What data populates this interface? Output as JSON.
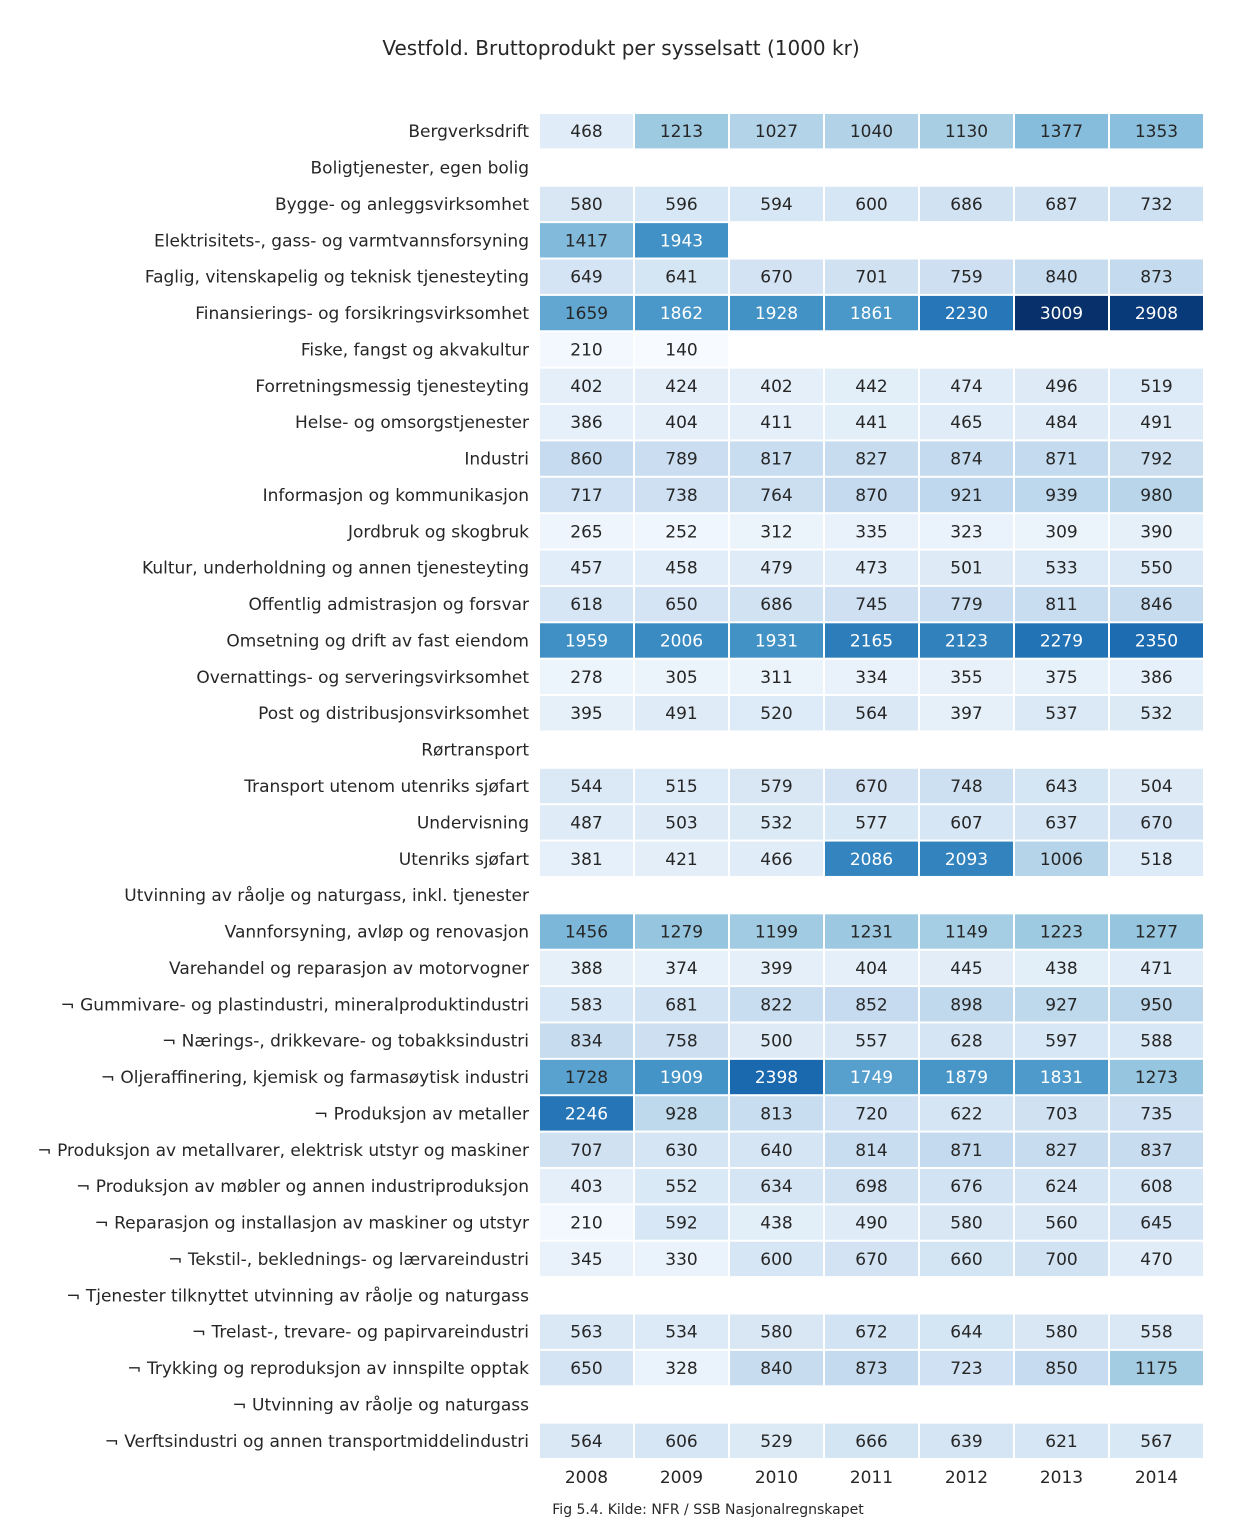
{
  "chart_data": {
    "type": "heatmap",
    "title": "Vestfold. Bruttoprodukt per sysselsatt (1000 kr)",
    "caption": "Fig 5.4. Kilde: NFR / SSB Nasjonalregnskapet",
    "columns": [
      "2008",
      "2009",
      "2010",
      "2011",
      "2012",
      "2013",
      "2014"
    ],
    "rows": [
      {
        "label": "Bergverksdrift",
        "values": [
          468,
          1213,
          1027,
          1040,
          1130,
          1377,
          1353
        ]
      },
      {
        "label": "Boligtjenester, egen bolig",
        "values": [
          null,
          null,
          null,
          null,
          null,
          null,
          null
        ]
      },
      {
        "label": "Bygge- og anleggsvirksomhet",
        "values": [
          580,
          596,
          594,
          600,
          686,
          687,
          732
        ]
      },
      {
        "label": "Elektrisitets-, gass- og varmtvannsforsyning",
        "values": [
          1417,
          1943,
          null,
          null,
          null,
          null,
          null
        ]
      },
      {
        "label": "Faglig, vitenskapelig og teknisk tjenesteyting",
        "values": [
          649,
          641,
          670,
          701,
          759,
          840,
          873
        ]
      },
      {
        "label": "Finansierings- og forsikringsvirksomhet",
        "values": [
          1659,
          1862,
          1928,
          1861,
          2230,
          3009,
          2908
        ]
      },
      {
        "label": "Fiske, fangst og akvakultur",
        "values": [
          210,
          140,
          null,
          null,
          null,
          null,
          null
        ]
      },
      {
        "label": "Forretningsmessig tjenesteyting",
        "values": [
          402,
          424,
          402,
          442,
          474,
          496,
          519
        ]
      },
      {
        "label": "Helse- og omsorgstjenester",
        "values": [
          386,
          404,
          411,
          441,
          465,
          484,
          491
        ]
      },
      {
        "label": "Industri",
        "values": [
          860,
          789,
          817,
          827,
          874,
          871,
          792
        ]
      },
      {
        "label": "Informasjon og kommunikasjon",
        "values": [
          717,
          738,
          764,
          870,
          921,
          939,
          980
        ]
      },
      {
        "label": "Jordbruk og skogbruk",
        "values": [
          265,
          252,
          312,
          335,
          323,
          309,
          390
        ]
      },
      {
        "label": "Kultur, underholdning og annen tjenesteyting",
        "values": [
          457,
          458,
          479,
          473,
          501,
          533,
          550
        ]
      },
      {
        "label": "Offentlig admistrasjon og forsvar",
        "values": [
          618,
          650,
          686,
          745,
          779,
          811,
          846
        ]
      },
      {
        "label": "Omsetning og drift av fast eiendom",
        "values": [
          1959,
          2006,
          1931,
          2165,
          2123,
          2279,
          2350
        ]
      },
      {
        "label": "Overnattings- og serveringsvirksomhet",
        "values": [
          278,
          305,
          311,
          334,
          355,
          375,
          386
        ]
      },
      {
        "label": "Post og distribusjonsvirksomhet",
        "values": [
          395,
          491,
          520,
          564,
          397,
          537,
          532
        ]
      },
      {
        "label": "Rørtransport",
        "values": [
          null,
          null,
          null,
          null,
          null,
          null,
          null
        ]
      },
      {
        "label": "Transport utenom utenriks sjøfart",
        "values": [
          544,
          515,
          579,
          670,
          748,
          643,
          504
        ]
      },
      {
        "label": "Undervisning",
        "values": [
          487,
          503,
          532,
          577,
          607,
          637,
          670
        ]
      },
      {
        "label": "Utenriks sjøfart",
        "values": [
          381,
          421,
          466,
          2086,
          2093,
          1006,
          518
        ]
      },
      {
        "label": "Utvinning av råolje og naturgass, inkl. tjenester",
        "values": [
          null,
          null,
          null,
          null,
          null,
          null,
          null
        ]
      },
      {
        "label": "Vannforsyning, avløp og renovasjon",
        "values": [
          1456,
          1279,
          1199,
          1231,
          1149,
          1223,
          1277
        ]
      },
      {
        "label": "Varehandel og reparasjon av motorvogner",
        "values": [
          388,
          374,
          399,
          404,
          445,
          438,
          471
        ]
      },
      {
        "label": "¬ Gummivare- og plastindustri, mineralproduktindustri",
        "values": [
          583,
          681,
          822,
          852,
          898,
          927,
          950
        ]
      },
      {
        "label": "¬ Nærings-, drikkevare- og tobakksindustri",
        "values": [
          834,
          758,
          500,
          557,
          628,
          597,
          588
        ]
      },
      {
        "label": "¬ Oljeraffinering, kjemisk og farmasøytisk industri",
        "values": [
          1728,
          1909,
          2398,
          1749,
          1879,
          1831,
          1273
        ]
      },
      {
        "label": "¬ Produksjon av metaller",
        "values": [
          2246,
          928,
          813,
          720,
          622,
          703,
          735
        ]
      },
      {
        "label": "¬ Produksjon av metallvarer, elektrisk utstyr og maskiner",
        "values": [
          707,
          630,
          640,
          814,
          871,
          827,
          837
        ]
      },
      {
        "label": "¬ Produksjon av møbler og annen industriproduksjon",
        "values": [
          403,
          552,
          634,
          698,
          676,
          624,
          608
        ]
      },
      {
        "label": "¬ Reparasjon og installasjon av maskiner og utstyr",
        "values": [
          210,
          592,
          438,
          490,
          580,
          560,
          645
        ]
      },
      {
        "label": "¬ Tekstil-, beklednings- og lærvareindustri",
        "values": [
          345,
          330,
          600,
          670,
          660,
          700,
          470
        ]
      },
      {
        "label": "¬ Tjenester tilknyttet utvinning av råolje og naturgass",
        "values": [
          null,
          null,
          null,
          null,
          null,
          null,
          null
        ]
      },
      {
        "label": "¬ Trelast-, trevare- og papirvareindustri",
        "values": [
          563,
          534,
          580,
          672,
          644,
          580,
          558
        ]
      },
      {
        "label": "¬ Trykking og reproduksjon av innspilte opptak",
        "values": [
          650,
          328,
          840,
          873,
          723,
          850,
          1175
        ]
      },
      {
        "label": "¬ Utvinning av råolje og naturgass",
        "values": [
          null,
          null,
          null,
          null,
          null,
          null,
          null
        ]
      },
      {
        "label": "¬ Verftsindustri og annen transportmiddelindustri",
        "values": [
          564,
          606,
          529,
          666,
          639,
          621,
          567
        ]
      }
    ],
    "color_scale": {
      "name": "Blues",
      "vmin": 140,
      "vmax": 3009,
      "stops": [
        "#f7fbff",
        "#deebf7",
        "#c6dbef",
        "#9ecae1",
        "#6baed6",
        "#4292c6",
        "#2171b5",
        "#08519c",
        "#08306b"
      ]
    },
    "legend": "none",
    "grid": false
  }
}
